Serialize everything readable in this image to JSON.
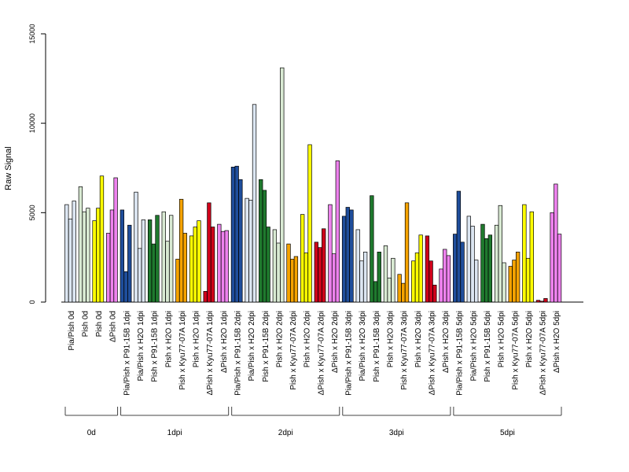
{
  "chart_data": {
    "type": "bar",
    "ylabel": "Raw Signal",
    "ylim": [
      0,
      15000
    ],
    "yticks": [
      0,
      5000,
      10000,
      15000
    ],
    "grid": false,
    "categories": [
      "Pia/Pish 0d",
      "Pish 0d",
      "Pish 0d",
      "ΔPish 0d",
      "Pia/Pish x P91-15B 1dpi",
      "Pia/Pish x H2O 1dpi",
      "Pish x P91-15B 1dpi",
      "Pish x H2O 1dpi",
      "Pish x Kyu77-07A 1dpi",
      "Pish x H2O 1dpi",
      "ΔPish x Kyu77-07A 1dpi",
      "ΔPish x H2O 1dpi",
      "Pia/Pish x P91-15B 2dpi",
      "Pia/Pish x H2O 2dpi",
      "Pish x P91-15B 2dpi",
      "Pish x H2O 2dpi",
      "Pish x Kyu77-07A 2dpi",
      "Pish x H2O 2dpi",
      "ΔPish x Kyu77-07A 2dpi",
      "ΔPish x H2O 2dpi",
      "Pia/Pish x P91-15B 3dpi",
      "Pia/Pish x H2O 3dpi",
      "Pish x P91-15B 3dpi",
      "Pish x H2O 3dpi",
      "Pish x Kyu77-07A 3dpi",
      "Pish x H2O 3dpi",
      "ΔPish x Kyu77-07A 3dpi",
      "ΔPish x H2O 3dpi",
      "Pia/Pish x P91-15B 5dpi",
      "Pia/Pish x H2O 5dpi",
      "Pish x P91-15B 5dpi",
      "Pish x H2O 5dpi",
      "Pish x Kyu77-07A 5dpi",
      "Pish x H2O 5dpi",
      "ΔPish x Kyu77-07A 5dpi",
      "ΔPish x H2O 5dpi"
    ],
    "colors": [
      "#dce6f2",
      "#d9ead3",
      "#ffff00",
      "#ee82ee",
      "#1f4e9c",
      "#dce6f2",
      "#1f7a2e",
      "#d9ead3",
      "#f5a300",
      "#ffff00",
      "#d0021b",
      "#ee82ee",
      "#1f4e9c",
      "#dce6f2",
      "#1f7a2e",
      "#d9ead3",
      "#f5a300",
      "#ffff00",
      "#d0021b",
      "#ee82ee",
      "#1f4e9c",
      "#dce6f2",
      "#1f7a2e",
      "#d9ead3",
      "#f5a300",
      "#ffff00",
      "#d0021b",
      "#ee82ee",
      "#1f4e9c",
      "#dce6f2",
      "#1f7a2e",
      "#d9ead3",
      "#f5a300",
      "#ffff00",
      "#d0021b",
      "#ee82ee"
    ],
    "values": [
      [
        5450,
        4650,
        5650
      ],
      [
        6450,
        5050,
        5250
      ],
      [
        4550,
        5250,
        7050
      ],
      [
        3850,
        5150,
        6950
      ],
      [
        5150,
        1700,
        4300
      ],
      [
        6150,
        3000,
        4600
      ],
      [
        4600,
        3250,
        4850
      ],
      [
        5050,
        3400,
        4850
      ],
      [
        2400,
        5750,
        3850
      ],
      [
        3700,
        4200,
        4550
      ],
      [
        600,
        5550,
        4200
      ],
      [
        4350,
        3950,
        4000
      ],
      [
        7550,
        7600,
        6850
      ],
      [
        5800,
        5700,
        11050
      ],
      [
        6850,
        6250,
        4200
      ],
      [
        4050,
        3300,
        13100
      ],
      [
        3250,
        2400,
        2550
      ],
      [
        4900,
        2750,
        8800
      ],
      [
        3350,
        3050,
        4100
      ],
      [
        5450,
        2700,
        7900
      ],
      [
        4800,
        5300,
        5150
      ],
      [
        4050,
        2300,
        2800
      ],
      [
        5950,
        1150,
        2800
      ],
      [
        3150,
        1350,
        2450
      ],
      [
        1550,
        1050,
        5550
      ],
      [
        2300,
        2750,
        3750
      ],
      [
        3700,
        2300,
        950
      ],
      [
        1850,
        2950,
        2600
      ],
      [
        3800,
        6200,
        3350
      ],
      [
        4800,
        4250,
        2350
      ],
      [
        4350,
        3550,
        3750
      ],
      [
        4300,
        5400,
        2200
      ],
      [
        2000,
        2350,
        2800
      ],
      [
        5450,
        2450,
        5050
      ],
      [
        100,
        50,
        200
      ],
      [
        5000,
        6600,
        3800
      ]
    ],
    "groups": [
      {
        "label": "0d",
        "start": 0,
        "end": 3
      },
      {
        "label": "1dpi",
        "start": 4,
        "end": 11
      },
      {
        "label": "2dpi",
        "start": 12,
        "end": 19
      },
      {
        "label": "3dpi",
        "start": 20,
        "end": 27
      },
      {
        "label": "5dpi",
        "start": 28,
        "end": 35
      }
    ]
  }
}
